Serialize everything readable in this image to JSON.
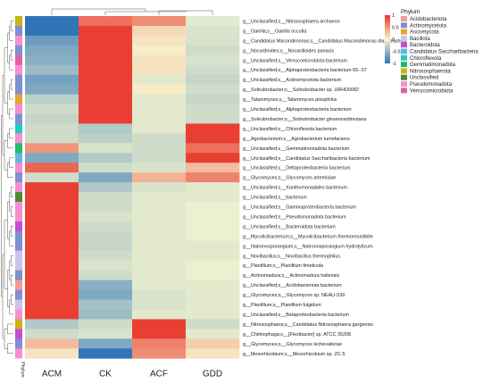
{
  "chart_data": {
    "type": "heatmap",
    "columns": [
      "ACM",
      "CK",
      "ACF",
      "GDD"
    ],
    "annotation_label": "Phylum",
    "scale": {
      "min": -1,
      "max": 1,
      "ticks": [
        "1",
        "0.5",
        "0",
        "-0.5",
        "-1"
      ]
    },
    "rows": [
      {
        "label": "g__Unclassified;s__Nitrososphaera archaeon",
        "phylum": "Nitrososphaerota",
        "values": [
          -1.0,
          0.7,
          0.55,
          -0.1
        ]
      },
      {
        "label": "g__Gaiella;s__Gaiella occulta",
        "phylum": "Actinomycetota",
        "values": [
          -1.0,
          0.95,
          0.15,
          -0.15
        ]
      },
      {
        "label": "g__Candidatus Macondimonas;s__Candidatus Macondimonas diazotrophica",
        "phylum": "Pseudomonadota",
        "values": [
          -0.7,
          0.95,
          0.1,
          -0.15
        ]
      },
      {
        "label": "g__Nocardioides;s__Nocardioides panacis",
        "phylum": "Actinomycetota",
        "values": [
          -0.6,
          0.95,
          0.05,
          -0.2
        ]
      },
      {
        "label": "g__Unclassified;s__Verrucomicrobiota bacterium",
        "phylum": "Verrucomicrobiota",
        "values": [
          -0.55,
          0.95,
          0.1,
          -0.15
        ]
      },
      {
        "label": "g__Unclassified;s__Alphaproteobacteria bacterium 65--37",
        "phylum": "Pseudomonadota",
        "values": [
          -0.45,
          0.95,
          0.1,
          -0.2
        ]
      },
      {
        "label": "g__Unclassified;s__Actinomycetota bacterium",
        "phylum": "Actinomycetota",
        "values": [
          -0.65,
          0.95,
          -0.1,
          -0.25
        ]
      },
      {
        "label": "g__Solirubrobacter;s__Solirubrobacter sp. URHD0082",
        "phylum": "Actinomycetota",
        "values": [
          -0.6,
          0.95,
          0.05,
          -0.2
        ]
      },
      {
        "label": "g__Talaromyces;s__Talaromyces pinophilus",
        "phylum": "Ascomycota",
        "values": [
          -0.3,
          0.95,
          -0.1,
          -0.25
        ]
      },
      {
        "label": "g__Unclassified;s__Alphaproteobacteria bacterium",
        "phylum": "Pseudomonadota",
        "values": [
          -0.2,
          0.95,
          -0.1,
          -0.2
        ]
      },
      {
        "label": "g__Solirubrobacter;s__Solirubrobacter ginsenosidimutans",
        "phylum": "Actinomycetota",
        "values": [
          -0.25,
          0.95,
          -0.1,
          -0.2
        ]
      },
      {
        "label": "g__Unclassified;s__Chloroflexota bacterium",
        "phylum": "Chloroflexota",
        "values": [
          -0.2,
          -0.35,
          -0.1,
          0.95
        ]
      },
      {
        "label": "g__Agrobacterium;s__Agrobacterium tumefaciens",
        "phylum": "Pseudomonadota",
        "values": [
          -0.2,
          -0.3,
          -0.2,
          0.95
        ]
      },
      {
        "label": "g__Unclassified;s__Gemmatimonadota bacterium",
        "phylum": "Gemmatimonadota",
        "values": [
          0.5,
          -0.15,
          -0.2,
          0.7
        ]
      },
      {
        "label": "g__Unclassified;s__Candidatus Saccharibacteria bacterium",
        "phylum": "Candidatus Saccharibacteria",
        "values": [
          -0.6,
          -0.35,
          -0.2,
          0.95
        ]
      },
      {
        "label": "g__Unclassified;s__Deltaproteobacteria bacterium",
        "phylum": "Pseudomonadota",
        "values": [
          0.75,
          -0.2,
          -0.15,
          0.3
        ]
      },
      {
        "label": "g__Glycomyces;s__Glycomyces artemisiae",
        "phylum": "Actinomycetota",
        "values": [
          -0.2,
          -0.6,
          0.35,
          0.6
        ]
      },
      {
        "label": "g__Unclassified;s__Xanthomonadales bacterium",
        "phylum": "Pseudomonadota",
        "values": [
          0.95,
          -0.35,
          -0.15,
          -0.1
        ]
      },
      {
        "label": "g__Unclassified;s__bacterium",
        "phylum": "Unclassified",
        "values": [
          0.95,
          -0.2,
          -0.1,
          -0.1
        ]
      },
      {
        "label": "g__Unclassified;s__Gammaproteobacteria bacterium",
        "phylum": "Pseudomonadota",
        "values": [
          0.95,
          -0.2,
          -0.1,
          -0.05
        ]
      },
      {
        "label": "g__Unclassified;s__Pseudomonadota bacterium",
        "phylum": "Pseudomonadota",
        "values": [
          0.95,
          -0.15,
          -0.1,
          -0.05
        ]
      },
      {
        "label": "g__Unclassified;s__Bacteroidota bacterium",
        "phylum": "Bacteroidota",
        "values": [
          0.95,
          -0.2,
          -0.1,
          -0.05
        ]
      },
      {
        "label": "g__Mycolicibacterium;s__Mycolicibacterium thermoresistibile",
        "phylum": "Actinomycetota",
        "values": [
          0.95,
          -0.25,
          -0.1,
          -0.05
        ]
      },
      {
        "label": "g__Natronosporangium;s__Natronosporangium hydrolyticum",
        "phylum": "Actinomycetota",
        "values": [
          0.95,
          -0.25,
          -0.1,
          -0.1
        ]
      },
      {
        "label": "g__Novibacillus;s__Novibacillus thermophilus",
        "phylum": "Bacillota",
        "values": [
          0.95,
          -0.2,
          -0.1,
          -0.1
        ]
      },
      {
        "label": "g__Planifilum;s__Planifilum fimeticola",
        "phylum": "Bacillota",
        "values": [
          0.95,
          -0.15,
          -0.1,
          -0.05
        ]
      },
      {
        "label": "g__Actinomadura;s__Actinomadura hallensis",
        "phylum": "Actinomycetota",
        "values": [
          0.95,
          -0.2,
          -0.1,
          -0.05
        ]
      },
      {
        "label": "g__Unclassified;s__Acidobacteriota bacterium",
        "phylum": "Acidobacteriota",
        "values": [
          0.95,
          -0.55,
          -0.1,
          -0.1
        ]
      },
      {
        "label": "g__Glycomyces;s__Glycomyces sp. NEAU-S30",
        "phylum": "Actinomycetota",
        "values": [
          0.95,
          -0.6,
          -0.15,
          -0.1
        ]
      },
      {
        "label": "g__Planifilum;s__Planifilum fulgidum",
        "phylum": "Bacillota",
        "values": [
          0.95,
          -0.4,
          -0.15,
          -0.1
        ]
      },
      {
        "label": "g__Unclassified;s__Betaproteobacteria bacterium",
        "phylum": "Pseudomonadota",
        "values": [
          0.95,
          -0.45,
          -0.1,
          -0.1
        ]
      },
      {
        "label": "g__Nitrososphaera;s__Candidatus Nitrososphaera gargensis",
        "phylum": "Nitrososphaerota",
        "values": [
          -0.35,
          -0.2,
          0.95,
          -0.2
        ]
      },
      {
        "label": "g__Chitinophaga;s__[Flexibacter] sp. ATCC 35208",
        "phylum": "Bacteroidota",
        "values": [
          -0.2,
          -0.15,
          0.95,
          -0.1
        ]
      },
      {
        "label": "g__Glycomyces;s__Glycomyces lechevalierae",
        "phylum": "Actinomycetota",
        "values": [
          0.3,
          -0.6,
          0.6,
          0.2
        ]
      },
      {
        "label": "g__Mesorhizobium;s__Mesorhizobium sp. ZC-5",
        "phylum": "Pseudomonadota",
        "values": [
          0.1,
          -1.0,
          0.55,
          0.1
        ]
      }
    ],
    "legend": {
      "title": "Phylum",
      "entries": [
        {
          "name": "Acidobacteriota",
          "color": "#f79a8f"
        },
        {
          "name": "Actinomycetota",
          "color": "#7f8fd0"
        },
        {
          "name": "Ascomycota",
          "color": "#e6a530"
        },
        {
          "name": "Bacillota",
          "color": "#c8c5e9"
        },
        {
          "name": "Bacteroidota",
          "color": "#c94dd4"
        },
        {
          "name": "Candidatus Saccharibacteria",
          "color": "#61b7e0"
        },
        {
          "name": "Chloroflexota",
          "color": "#25c8be"
        },
        {
          "name": "Gemmatimonadota",
          "color": "#20bb6c"
        },
        {
          "name": "Nitrososphaerota",
          "color": "#c7b514"
        },
        {
          "name": "Unclassified",
          "color": "#4c8a2a"
        },
        {
          "name": "Pseudomonadota",
          "color": "#f58fd2"
        },
        {
          "name": "Verrucomicrobiota",
          "color": "#e35fa6"
        }
      ]
    },
    "colors": {
      "high": "#e8352a",
      "mid": "#f7f6cf",
      "low": "#2f75b8"
    }
  }
}
